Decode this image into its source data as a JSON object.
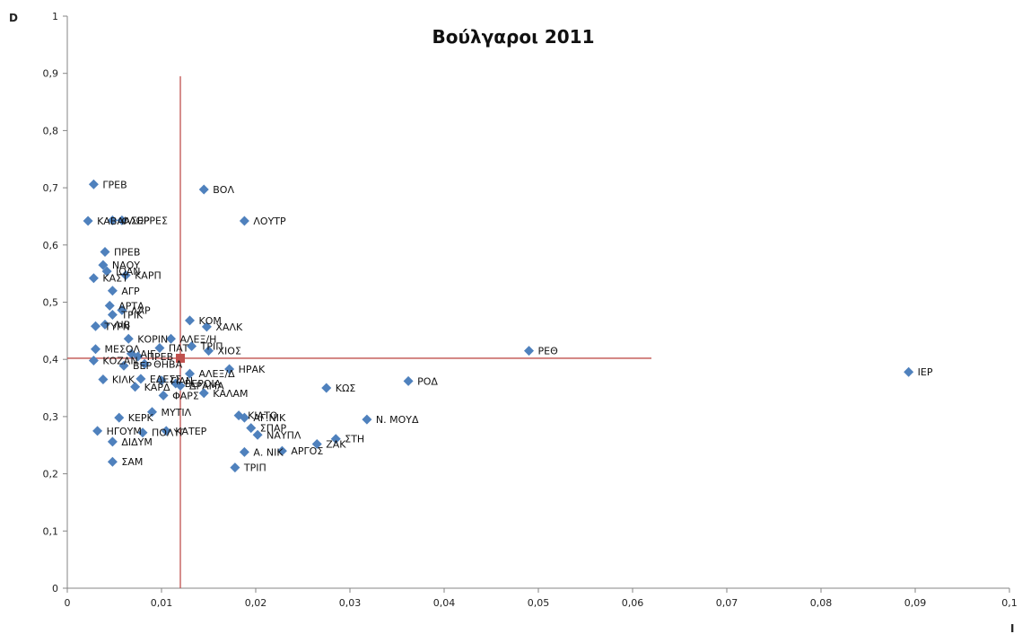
{
  "chart_data": {
    "type": "scatter",
    "title": "Βούλγαροι 2011",
    "xlabel": "I",
    "ylabel": "D",
    "xlim": [
      0,
      0.1
    ],
    "ylim": [
      0,
      1
    ],
    "x_ticks": [
      "0",
      "0,01",
      "0,02",
      "0,03",
      "0,04",
      "0,05",
      "0,06",
      "0,07",
      "0,08",
      "0,09",
      "0,1"
    ],
    "y_ticks": [
      "0",
      "0,1",
      "0,2",
      "0,3",
      "0,4",
      "0,5",
      "0,6",
      "0,7",
      "0,8",
      "0,9",
      "1"
    ],
    "grid": false,
    "legend": "none",
    "colors": {
      "marker": "#4f81bd",
      "reference": "#c0504d",
      "mean_marker": "#c0504d"
    },
    "reference_lines": {
      "vertical": {
        "x": 0.012,
        "y_range": [
          0,
          0.895
        ]
      },
      "horizontal": {
        "y": 0.402,
        "x_range": [
          0,
          0.062
        ]
      }
    },
    "mean_point": {
      "x": 0.012,
      "y": 0.402
    },
    "points": [
      {
        "label": "ΓΡΕΒ",
        "x": 0.0028,
        "y": 0.706
      },
      {
        "label": "ΒΟΛ",
        "x": 0.0145,
        "y": 0.697
      },
      {
        "label": "ΦΛΩΡ",
        "x": 0.0048,
        "y": 0.643
      },
      {
        "label": "ΣΕΡΡΕΣ",
        "x": 0.0058,
        "y": 0.643
      },
      {
        "label": "ΚΑΒΑΛ",
        "x": 0.0022,
        "y": 0.642
      },
      {
        "label": "ΛΟΥΤΡ",
        "x": 0.0188,
        "y": 0.642
      },
      {
        "label": "ΠΡΕΒ",
        "x": 0.004,
        "y": 0.588
      },
      {
        "label": "ΝΑΟΥ",
        "x": 0.0038,
        "y": 0.565
      },
      {
        "label": "ΙΩΑΝ",
        "x": 0.0042,
        "y": 0.554
      },
      {
        "label": "ΚΑΡΠ",
        "x": 0.0062,
        "y": 0.547
      },
      {
        "label": "ΚΑΣΤ",
        "x": 0.0028,
        "y": 0.542
      },
      {
        "label": "ΑΓΡ",
        "x": 0.0048,
        "y": 0.52
      },
      {
        "label": "ΑΡΤΑ",
        "x": 0.0045,
        "y": 0.494
      },
      {
        "label": "ΛΑΡ",
        "x": 0.0058,
        "y": 0.486
      },
      {
        "label": "ΤΡΙΚ",
        "x": 0.0048,
        "y": 0.478
      },
      {
        "label": "ΚΟΜ",
        "x": 0.013,
        "y": 0.468
      },
      {
        "label": "ΛΙΒ",
        "x": 0.004,
        "y": 0.461
      },
      {
        "label": "ΤΥΡΝ",
        "x": 0.003,
        "y": 0.458
      },
      {
        "label": "ΧΑΛΚ",
        "x": 0.0148,
        "y": 0.457
      },
      {
        "label": "ΚΟΡΙΝ",
        "x": 0.0065,
        "y": 0.436
      },
      {
        "label": "ΑΛΕΞ/Η",
        "x": 0.011,
        "y": 0.436
      },
      {
        "label": "ΤΡΙΠ",
        "x": 0.0132,
        "y": 0.423
      },
      {
        "label": "ΠΑΤ",
        "x": 0.0098,
        "y": 0.42
      },
      {
        "label": "ΜΕΣΟΛ",
        "x": 0.003,
        "y": 0.418
      },
      {
        "label": "ΧΙΟΣ",
        "x": 0.015,
        "y": 0.415
      },
      {
        "label": "ΡΕΘ",
        "x": 0.049,
        "y": 0.415
      },
      {
        "label": "ΑΙΓ",
        "x": 0.0068,
        "y": 0.41
      },
      {
        "label": "ΠΡΕΒ",
        "x": 0.0075,
        "y": 0.405
      },
      {
        "label": "ΚΟΖΑΝ",
        "x": 0.0028,
        "y": 0.398
      },
      {
        "label": "ΘΗΒΑ",
        "x": 0.0082,
        "y": 0.392
      },
      {
        "label": "ΒΕΡ",
        "x": 0.006,
        "y": 0.389
      },
      {
        "label": "ΗΡΑΚ",
        "x": 0.0172,
        "y": 0.383
      },
      {
        "label": "ΙΕΡ",
        "x": 0.0893,
        "y": 0.378
      },
      {
        "label": "ΑΛΕΞ/Δ",
        "x": 0.013,
        "y": 0.375
      },
      {
        "label": "ΕΔΕΣΣ",
        "x": 0.0078,
        "y": 0.366
      },
      {
        "label": "ΚΙΛΚ",
        "x": 0.0038,
        "y": 0.365
      },
      {
        "label": "ΓΙΑΝ",
        "x": 0.01,
        "y": 0.363
      },
      {
        "label": "ΡΟΔ",
        "x": 0.0362,
        "y": 0.362
      },
      {
        "label": "ΒΕΡΟΙΑ",
        "x": 0.0115,
        "y": 0.358
      },
      {
        "label": "ΔΡΑΜΑ",
        "x": 0.012,
        "y": 0.354
      },
      {
        "label": "ΚΑΡΔ",
        "x": 0.0072,
        "y": 0.352
      },
      {
        "label": "ΚΩΣ",
        "x": 0.0275,
        "y": 0.35
      },
      {
        "label": "ΚΑΛΑΜ",
        "x": 0.0145,
        "y": 0.341
      },
      {
        "label": "ΦΑΡΣ",
        "x": 0.0102,
        "y": 0.337
      },
      {
        "label": "ΜΥΤΙΛ",
        "x": 0.009,
        "y": 0.308
      },
      {
        "label": "ΚΙΑΤΟ",
        "x": 0.0182,
        "y": 0.302
      },
      {
        "label": "ΑΓ.ΝΙΚ",
        "x": 0.0188,
        "y": 0.298
      },
      {
        "label": "ΚΕΡΚ",
        "x": 0.0055,
        "y": 0.298
      },
      {
        "label": "Ν. ΜΟΥΔ",
        "x": 0.0318,
        "y": 0.295
      },
      {
        "label": "ΣΠΑΡ",
        "x": 0.0195,
        "y": 0.28
      },
      {
        "label": "ΗΓΟΥΜ",
        "x": 0.0032,
        "y": 0.275
      },
      {
        "label": "ΚΑΤΕΡ",
        "x": 0.0105,
        "y": 0.275
      },
      {
        "label": "ΠΟΛΥΓ",
        "x": 0.008,
        "y": 0.272
      },
      {
        "label": "ΝΑΥΠΛ",
        "x": 0.0202,
        "y": 0.268
      },
      {
        "label": "ΣΤΗ",
        "x": 0.0285,
        "y": 0.261
      },
      {
        "label": "ΖΑΚ",
        "x": 0.0265,
        "y": 0.252
      },
      {
        "label": "ΔΙΔΥΜ",
        "x": 0.0048,
        "y": 0.256
      },
      {
        "label": "ΑΡΓΟΣ",
        "x": 0.0228,
        "y": 0.24
      },
      {
        "label": "Α. ΝΙΚ",
        "x": 0.0188,
        "y": 0.238
      },
      {
        "label": "ΣΑΜ",
        "x": 0.0048,
        "y": 0.221
      },
      {
        "label": "ΤΡΙΠ",
        "x": 0.0178,
        "y": 0.211
      }
    ]
  }
}
